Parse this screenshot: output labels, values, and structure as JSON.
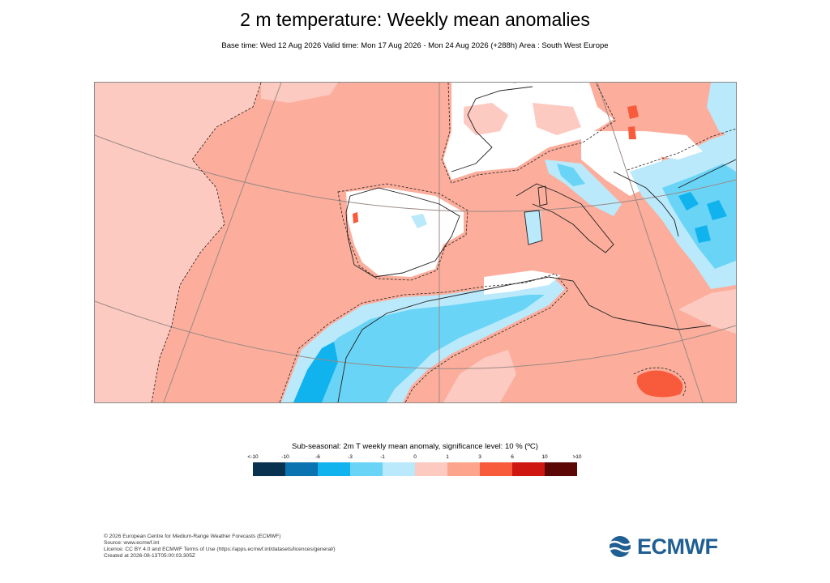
{
  "header": {
    "title": "2 m temperature: Weekly mean anomalies",
    "subtitle": "Base time: Wed 12 Aug 2026 Valid time: Mon 17 Aug 2026 - Mon 24 Aug 2026 (+288h) Area : South West Europe"
  },
  "legend": {
    "title": "Sub-seasonal: 2m T weekly mean anomaly, significance level: 10 % (ºC)",
    "ticks": [
      "<-10",
      "-10",
      "-6",
      "-3",
      "-1",
      "0",
      "1",
      "3",
      "6",
      "10",
      ">10"
    ],
    "colors": [
      "#08324f",
      "#0b73b0",
      "#11b3ee",
      "#6ad4f7",
      "#b9e9fb",
      "#fccac1",
      "#fca48c",
      "#f85a3c",
      "#cf1712",
      "#5c0606"
    ]
  },
  "map": {
    "colors": {
      "background": "#fcad9b",
      "light_red": "#fccac1",
      "near_zero": "#ffffff",
      "light_blue": "#b9e9fb",
      "mid_blue": "#6ad4f7",
      "blue": "#11b3ee",
      "strong_red": "#f85a3c"
    }
  },
  "footer": {
    "lines": [
      "© 2026 European Centre for Medium-Range Weather Forecasts (ECMWF)",
      "Source: www.ecmwf.int",
      "Licence: CC BY 4.0 and ECMWF Terms of Use (https://apps.ecmwf.int/datasets/licences/general/)",
      "Created at 2026-08-13T05:00:03.305Z"
    ]
  },
  "logo": {
    "text": "ECMWF"
  }
}
